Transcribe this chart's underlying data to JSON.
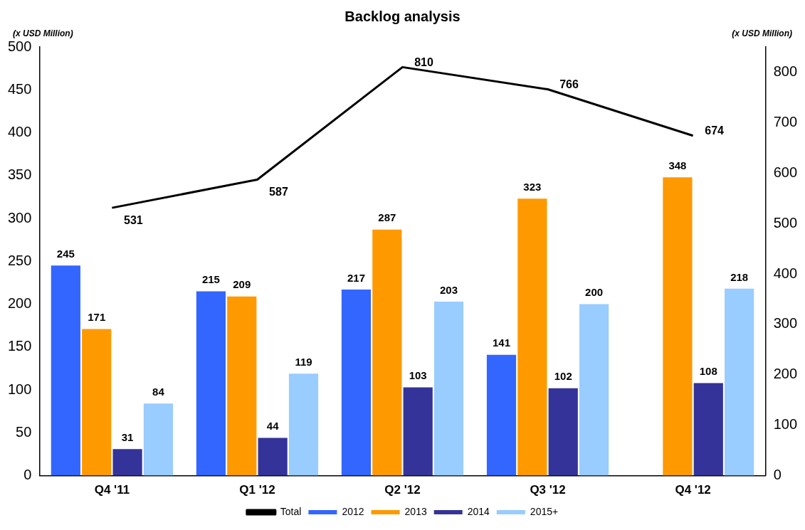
{
  "chart_data": {
    "type": "bar",
    "title": "Backlog analysis",
    "ylabel": "(x USD Million)",
    "y2label": "(x USD Million)",
    "categories": [
      "Q4 '11",
      "Q1 '12",
      "Q2 '12",
      "Q3 '12",
      "Q4 '12"
    ],
    "series": [
      {
        "name": "2012",
        "color": "#3366ff",
        "values": [
          245,
          215,
          217,
          141,
          null
        ]
      },
      {
        "name": "2013",
        "color": "#ff9900",
        "values": [
          171,
          209,
          287,
          323,
          348
        ]
      },
      {
        "name": "2014",
        "color": "#333399",
        "values": [
          31,
          44,
          103,
          102,
          108
        ]
      },
      {
        "name": "2015+",
        "color": "#99ccff",
        "values": [
          84,
          119,
          203,
          200,
          218
        ]
      },
      {
        "name": "Total",
        "type": "line",
        "axis": "y2",
        "color": "#000000",
        "values": [
          531,
          587,
          810,
          766,
          674
        ]
      }
    ],
    "ylim": [
      0,
      500
    ],
    "yticks": [
      0,
      50,
      100,
      150,
      200,
      250,
      300,
      350,
      400,
      450,
      500
    ],
    "y2lim": [
      0,
      850
    ],
    "y2ticks": [
      0,
      100,
      200,
      300,
      400,
      500,
      600,
      700,
      800
    ],
    "data_labels": true,
    "grid": false,
    "legend": "bottom",
    "marker": "none",
    "line_style": "solid"
  }
}
